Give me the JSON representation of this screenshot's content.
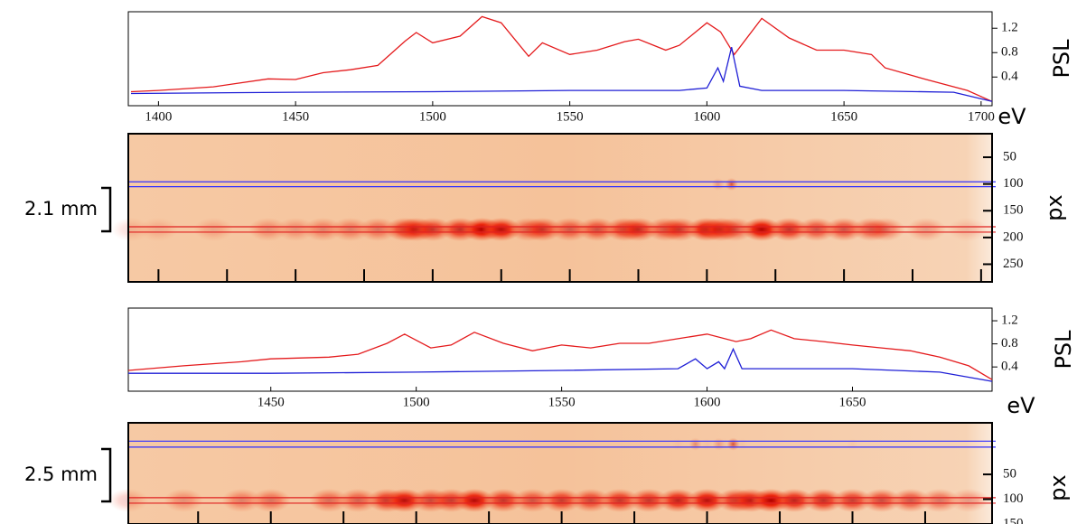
{
  "chart_data": [
    {
      "type": "line",
      "xlabel": "eV",
      "ylabel": "PSL",
      "xlim": [
        1389,
        1704
      ],
      "ylim": [
        -0.07,
        1.47
      ],
      "xticks": [
        1400,
        1450,
        1500,
        1550,
        1600,
        1650,
        1700
      ],
      "yticks": [
        0.4,
        0.8,
        1.2
      ],
      "series": [
        {
          "color": "#e41a1c",
          "x": [
            1390,
            1400,
            1420,
            1440,
            1450,
            1460,
            1470,
            1480,
            1490,
            1494,
            1500,
            1510,
            1518,
            1525,
            1535,
            1540,
            1550,
            1560,
            1570,
            1575,
            1585,
            1590,
            1600,
            1605,
            1610,
            1620,
            1630,
            1640,
            1650,
            1660,
            1665,
            1680,
            1695,
            1704
          ],
          "values": [
            0.16,
            0.18,
            0.24,
            0.37,
            0.36,
            0.47,
            0.52,
            0.59,
            0.99,
            1.13,
            0.96,
            1.07,
            1.39,
            1.29,
            0.74,
            0.96,
            0.77,
            0.84,
            0.98,
            1.02,
            0.84,
            0.92,
            1.29,
            1.14,
            0.77,
            1.36,
            1.04,
            0.84,
            0.84,
            0.77,
            0.55,
            0.36,
            0.18,
            0.0
          ]
        },
        {
          "color": "#1f1fd6",
          "x": [
            1390,
            1450,
            1500,
            1550,
            1590,
            1600,
            1604,
            1606,
            1609,
            1612,
            1620,
            1650,
            1690,
            1704
          ],
          "values": [
            0.13,
            0.15,
            0.16,
            0.18,
            0.18,
            0.22,
            0.55,
            0.33,
            0.89,
            0.25,
            0.18,
            0.18,
            0.15,
            0.0
          ]
        }
      ]
    },
    {
      "type": "image",
      "ylabel": "px",
      "annotation": "2.1 mm",
      "xlim": [
        1389,
        1704
      ],
      "ylim": [
        6,
        283
      ],
      "xticks": [
        1400,
        1425,
        1450,
        1475,
        1500,
        1525,
        1550,
        1575,
        1600,
        1625,
        1650,
        1675,
        1700
      ],
      "yticks": [
        50,
        100,
        150,
        200,
        250
      ],
      "bands": [
        {
          "color": "#3030ff",
          "values": [
            96,
            105
          ]
        },
        {
          "color": "#e02020",
          "values": [
            180,
            190
          ]
        }
      ]
    },
    {
      "type": "line",
      "xlabel": "eV",
      "ylabel": "PSL",
      "xlim": [
        1401,
        1698
      ],
      "ylim": [
        -0.02,
        1.42
      ],
      "xticks": [
        1450,
        1500,
        1550,
        1600,
        1650
      ],
      "yticks": [
        0.4,
        0.8,
        1.2
      ],
      "series": [
        {
          "color": "#e41a1c",
          "x": [
            1401,
            1420,
            1440,
            1450,
            1470,
            1480,
            1490,
            1496,
            1505,
            1512,
            1520,
            1530,
            1540,
            1550,
            1560,
            1570,
            1580,
            1590,
            1600,
            1610,
            1615,
            1622,
            1630,
            1640,
            1650,
            1660,
            1670,
            1680,
            1690,
            1698
          ],
          "values": [
            0.34,
            0.42,
            0.49,
            0.54,
            0.57,
            0.62,
            0.81,
            0.97,
            0.73,
            0.78,
            1.0,
            0.81,
            0.68,
            0.78,
            0.73,
            0.81,
            0.81,
            0.89,
            0.97,
            0.84,
            0.89,
            1.04,
            0.89,
            0.84,
            0.78,
            0.73,
            0.68,
            0.57,
            0.42,
            0.18
          ]
        },
        {
          "color": "#1f1fd6",
          "x": [
            1401,
            1450,
            1500,
            1550,
            1590,
            1596,
            1600,
            1604,
            1606,
            1609,
            1612,
            1650,
            1680,
            1698
          ],
          "values": [
            0.29,
            0.29,
            0.31,
            0.34,
            0.37,
            0.54,
            0.37,
            0.49,
            0.37,
            0.71,
            0.37,
            0.37,
            0.31,
            0.15
          ]
        }
      ]
    },
    {
      "type": "image",
      "ylabel": "px",
      "annotation": "2.5 mm",
      "xlim": [
        1401,
        1698
      ],
      "ylim": [
        -54,
        150
      ],
      "xticks": [
        1425,
        1450,
        1475,
        1500,
        1525,
        1550,
        1575,
        1600,
        1625,
        1650,
        1675
      ],
      "yticks": [
        50,
        100,
        150
      ],
      "bands": [
        {
          "color": "#3030ff",
          "values": [
            -17,
            -5
          ]
        },
        {
          "color": "#e02020",
          "values": [
            97,
            108
          ]
        }
      ]
    }
  ]
}
